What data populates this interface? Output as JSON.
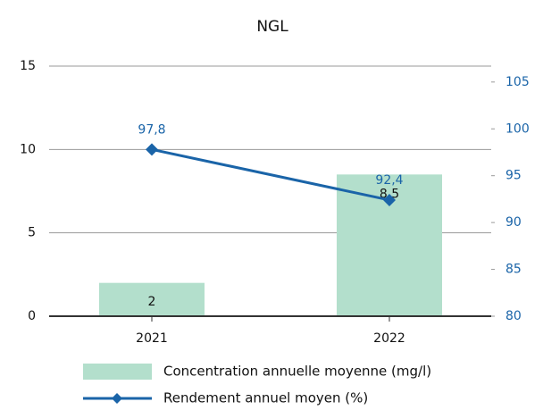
{
  "chart_data": {
    "type": "bar",
    "title": "NGL",
    "categories": [
      "2021",
      "2022"
    ],
    "series": [
      {
        "name": "Concentration annuelle moyenne (mg/l)",
        "type": "bar",
        "color": "#b3dfcc",
        "values": [
          2,
          8.5
        ],
        "value_labels": [
          "2",
          "8,5"
        ]
      },
      {
        "name": "Rendement annuel moyen (%)",
        "type": "line",
        "axis": "y2",
        "color": "#1a64a8",
        "values": [
          97.8,
          92.4
        ],
        "value_labels": [
          "97,8",
          "92,4"
        ]
      }
    ],
    "ylim": [
      0,
      15
    ],
    "yticks": [
      0,
      5,
      10,
      15
    ],
    "y2lim": [
      80,
      106.7
    ],
    "y2ticks": [
      80,
      85,
      90,
      95,
      100,
      105
    ],
    "grid": true
  }
}
